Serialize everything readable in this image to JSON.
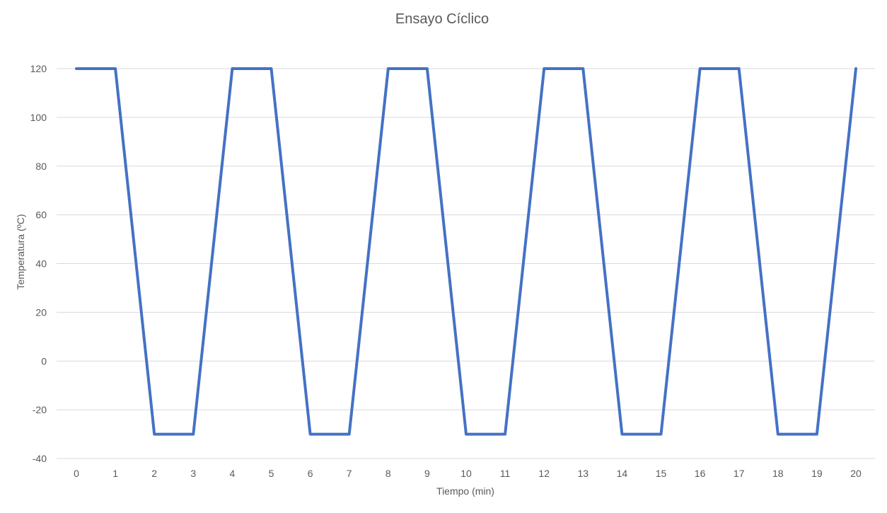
{
  "chart_data": {
    "type": "line",
    "title": "Ensayo Cíclico",
    "xlabel": "Tiempo (min)",
    "ylabel": "Temperatura (ºC)",
    "x": [
      0,
      1,
      2,
      3,
      4,
      5,
      6,
      7,
      8,
      9,
      10,
      11,
      12,
      13,
      14,
      15,
      16,
      17,
      18,
      19,
      20
    ],
    "x_tick_labels": [
      "0",
      "1",
      "2",
      "3",
      "4",
      "5",
      "6",
      "7",
      "8",
      "9",
      "10",
      "11",
      "12",
      "13",
      "14",
      "15",
      "16",
      "17",
      "18",
      "19",
      "20"
    ],
    "y_ticks": [
      -40,
      -20,
      0,
      20,
      40,
      60,
      80,
      100,
      120
    ],
    "ylim": [
      -40,
      120
    ],
    "grid": true,
    "legend": "none",
    "series": [
      {
        "values": [
          120,
          120,
          -30,
          -30,
          120,
          120,
          -30,
          -30,
          120,
          120,
          -30,
          -30,
          120,
          120,
          -30,
          -30,
          120,
          120,
          -30,
          -30,
          120
        ],
        "color": "#4472C4"
      }
    ],
    "colors": {
      "gridline": "#d9d9d9",
      "text": "#595959"
    }
  }
}
